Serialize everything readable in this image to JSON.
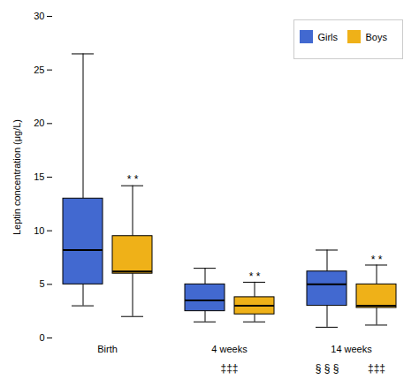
{
  "chart_data": {
    "type": "box",
    "ylabel": "Leptin concentration (μg/L)",
    "categories": [
      "Birth",
      "4 weeks",
      "14 weeks"
    ],
    "series": [
      {
        "name": "Girls",
        "values": [
          {
            "q1": 5.0,
            "median": 8.2,
            "q3": 13.0,
            "whislo": 3.0,
            "whishi": 26.5
          },
          {
            "q1": 2.5,
            "median": 3.5,
            "q3": 5.0,
            "whislo": 1.5,
            "whishi": 6.5
          },
          {
            "q1": 3.0,
            "median": 5.0,
            "q3": 6.2,
            "whislo": 1.0,
            "whishi": 8.2
          }
        ]
      },
      {
        "name": "Boys",
        "values": [
          {
            "q1": 6.0,
            "median": 6.2,
            "q3": 9.5,
            "whislo": 2.0,
            "whishi": 14.2
          },
          {
            "q1": 2.2,
            "median": 3.0,
            "q3": 3.8,
            "whislo": 1.5,
            "whishi": 5.2
          },
          {
            "q1": 2.8,
            "median": 3.0,
            "q3": 5.0,
            "whislo": 1.2,
            "whishi": 6.8
          }
        ]
      }
    ],
    "annotations": [
      {
        "text": "* *",
        "category": "Birth",
        "series": "Boys",
        "y": 14.5
      },
      {
        "text": "* *",
        "category": "4 weeks",
        "series": "Boys",
        "y": 5.4
      },
      {
        "text": "* *",
        "category": "14 weeks",
        "series": "Boys",
        "y": 7.0
      },
      {
        "text": "‡‡‡",
        "category": "4 weeks",
        "position": "below"
      },
      {
        "text": "§ § §",
        "category": "14 weeks",
        "series": "Girls",
        "position": "below"
      },
      {
        "text": "‡‡‡",
        "category": "14 weeks",
        "series": "Boys",
        "position": "below"
      }
    ],
    "ylim": [
      0,
      30
    ],
    "yticks": [
      0,
      5,
      10,
      15,
      20,
      25,
      30
    ],
    "grid": false,
    "legend": "upper right"
  }
}
